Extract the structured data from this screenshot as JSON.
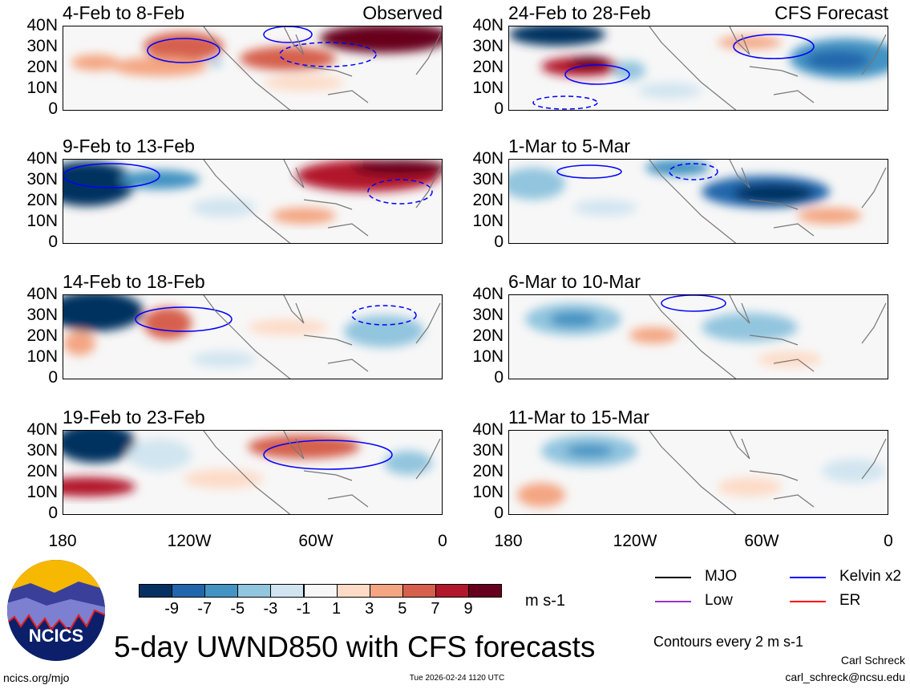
{
  "panels": [
    {
      "id": "p1",
      "title": "4-Feb to 8-Feb",
      "tag": "Observed"
    },
    {
      "id": "p2",
      "title": "24-Feb to 28-Feb",
      "tag": "CFS Forecast"
    },
    {
      "id": "p3",
      "title": "9-Feb to 13-Feb",
      "tag": ""
    },
    {
      "id": "p4",
      "title": "1-Mar to 5-Mar",
      "tag": ""
    },
    {
      "id": "p5",
      "title": "14-Feb to 18-Feb",
      "tag": ""
    },
    {
      "id": "p6",
      "title": "6-Mar to 10-Mar",
      "tag": ""
    },
    {
      "id": "p7",
      "title": "19-Feb to 23-Feb",
      "tag": ""
    },
    {
      "id": "p8",
      "title": "11-Mar to 15-Mar",
      "tag": ""
    }
  ],
  "lat_labels": [
    "40N",
    "30N",
    "20N",
    "10N",
    "0"
  ],
  "lon_labels": [
    "180",
    "120W",
    "60W",
    "0"
  ],
  "colorbar": {
    "colors": [
      "#053061",
      "#2166ac",
      "#4393c3",
      "#92c5de",
      "#d1e5f0",
      "#f7f7f7",
      "#fddbc7",
      "#f4a582",
      "#d6604d",
      "#b2182b",
      "#67001f"
    ],
    "labels": [
      "-9",
      "-7",
      "-5",
      "-3",
      "-1",
      "1",
      "3",
      "5",
      "7",
      "9"
    ],
    "units": "m s-1"
  },
  "legend": [
    {
      "label": "MJO",
      "color": "#000000"
    },
    {
      "label": "Kelvin x2",
      "color": "#0000ff"
    },
    {
      "label": "Low",
      "color": "#9933cc"
    },
    {
      "label": "ER",
      "color": "#ff0000"
    }
  ],
  "contour_note": "Contours every 2 m s-1",
  "main_title": "5-day UWND850 with CFS forecasts",
  "logo_text": "NCICS",
  "website": "ncics.org/mjo",
  "timestamp": "Tue 2026-02-24 1120 UTC",
  "author": "Carl Schreck",
  "email": "carl_schreck@ncsu.edu"
}
